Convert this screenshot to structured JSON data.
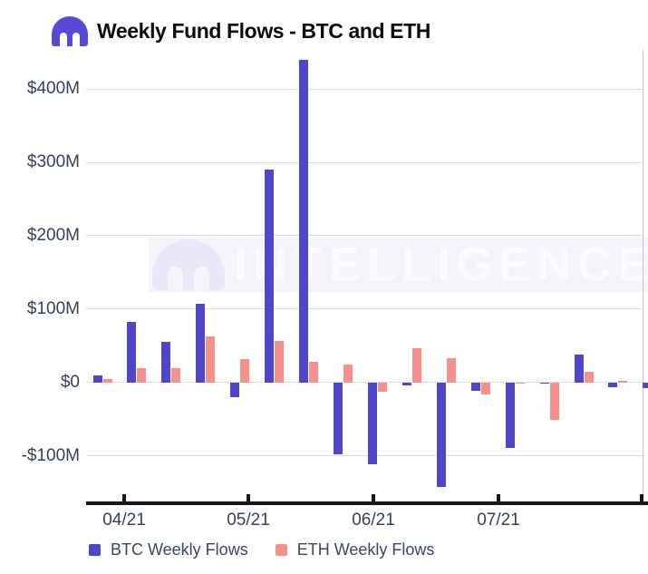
{
  "header": {
    "title": "Weekly Fund Flows - BTC and ETH",
    "logo": "kraken-logo"
  },
  "watermark": {
    "text": "INTELLIGENCE",
    "logo": "kraken-logo"
  },
  "colors": {
    "btc": "#4f46c8",
    "eth": "#f5908d",
    "brand_purple": "#5849d6"
  },
  "chart_data": {
    "type": "bar",
    "title": "Weekly Fund Flows - BTC and ETH",
    "unit": "USD millions",
    "grid": "horizontal",
    "legend_position": "bottom",
    "ylim": [
      -165,
      455
    ],
    "y_tick_values": [
      400,
      300,
      200,
      100,
      0,
      -100
    ],
    "y_tick_labels": [
      "$400M",
      "$300M",
      "$200M",
      "$100M",
      "$0",
      "-$100M"
    ],
    "x_tick_labels": [
      "04/21",
      "05/21",
      "06/21",
      "07/21"
    ],
    "x_note": "weekly bars, months marked on axis",
    "series": [
      {
        "name": "BTC Weekly Flows",
        "color": "#4f46c8",
        "values": [
          10,
          83,
          55,
          107,
          -20,
          290,
          440,
          -98,
          -112,
          -4,
          -142,
          -12,
          -89,
          -2,
          38,
          -7,
          -8
        ]
      },
      {
        "name": "ETH Weekly Flows",
        "color": "#f5908d",
        "values": [
          5,
          19,
          19,
          63,
          32,
          57,
          28,
          24,
          -13,
          47,
          33,
          -17,
          -2,
          -51,
          15,
          2,
          null
        ]
      }
    ]
  },
  "legend": {
    "items": [
      {
        "label": "BTC Weekly Flows",
        "color": "#4f46c8"
      },
      {
        "label": "ETH Weekly Flows",
        "color": "#f5908d"
      }
    ]
  }
}
